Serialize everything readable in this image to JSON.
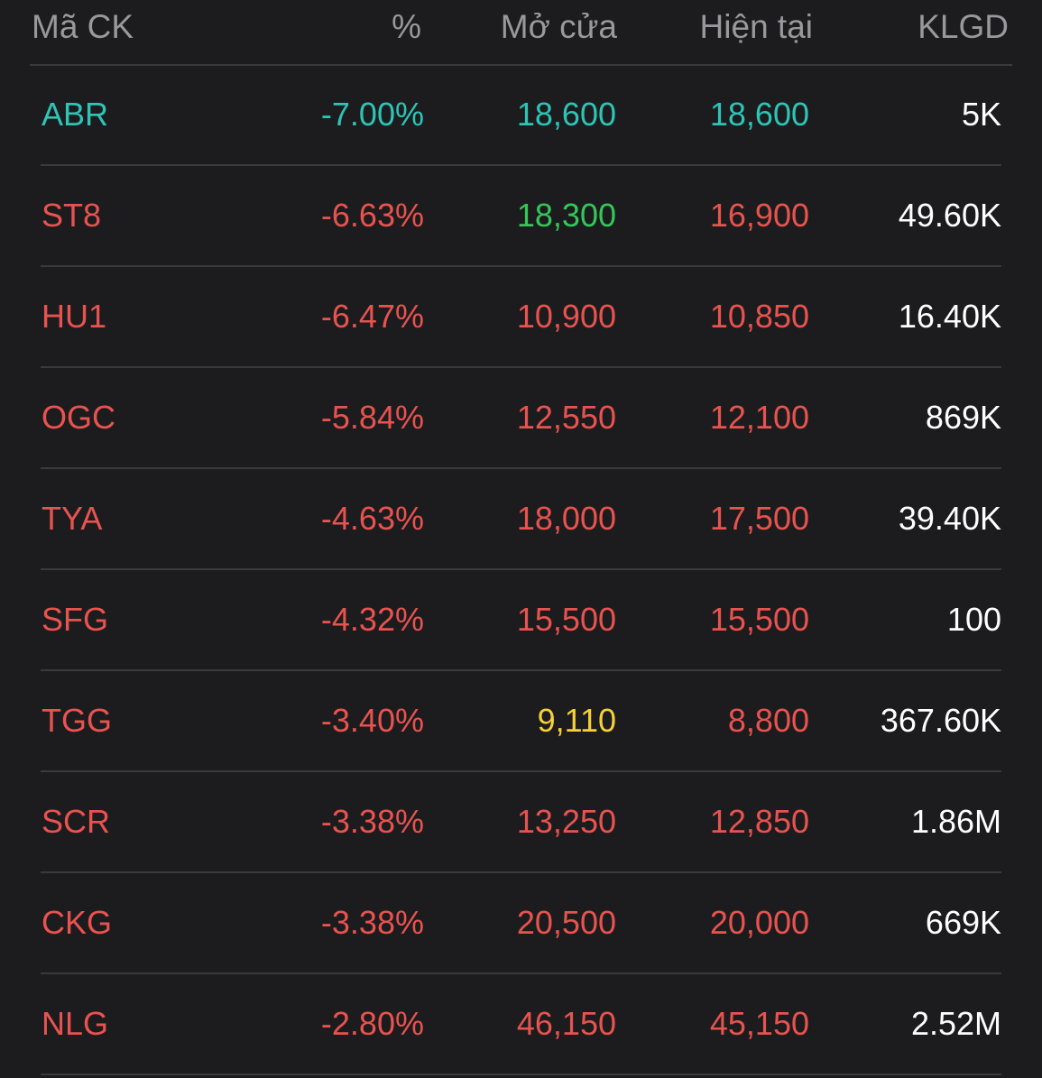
{
  "colors": {
    "background": "#1c1c1e",
    "header_text": "#98989d",
    "divider": "#3a3a3c",
    "down": "#e8534f",
    "floor": "#2ec4b6",
    "up": "#34c759",
    "reference": "#f5d038",
    "neutral": "#ffffff"
  },
  "header": {
    "symbol": "Mã CK",
    "percent": "%",
    "open": "Mở cửa",
    "current": "Hiện tại",
    "volume": "KLGD"
  },
  "rows": [
    {
      "symbol": "ABR",
      "percent": "-7.00%",
      "open": "18,600",
      "current": "18,600",
      "volume": "5K",
      "symbol_color": "#2ec4b6",
      "percent_color": "#2ec4b6",
      "open_color": "#2ec4b6",
      "current_color": "#2ec4b6"
    },
    {
      "symbol": "ST8",
      "percent": "-6.63%",
      "open": "18,300",
      "current": "16,900",
      "volume": "49.60K",
      "symbol_color": "#e8534f",
      "percent_color": "#e8534f",
      "open_color": "#34c759",
      "current_color": "#e8534f"
    },
    {
      "symbol": "HU1",
      "percent": "-6.47%",
      "open": "10,900",
      "current": "10,850",
      "volume": "16.40K",
      "symbol_color": "#e8534f",
      "percent_color": "#e8534f",
      "open_color": "#e8534f",
      "current_color": "#e8534f"
    },
    {
      "symbol": "OGC",
      "percent": "-5.84%",
      "open": "12,550",
      "current": "12,100",
      "volume": "869K",
      "symbol_color": "#e8534f",
      "percent_color": "#e8534f",
      "open_color": "#e8534f",
      "current_color": "#e8534f"
    },
    {
      "symbol": "TYA",
      "percent": "-4.63%",
      "open": "18,000",
      "current": "17,500",
      "volume": "39.40K",
      "symbol_color": "#e8534f",
      "percent_color": "#e8534f",
      "open_color": "#e8534f",
      "current_color": "#e8534f"
    },
    {
      "symbol": "SFG",
      "percent": "-4.32%",
      "open": "15,500",
      "current": "15,500",
      "volume": "100",
      "symbol_color": "#e8534f",
      "percent_color": "#e8534f",
      "open_color": "#e8534f",
      "current_color": "#e8534f"
    },
    {
      "symbol": "TGG",
      "percent": "-3.40%",
      "open": "9,110",
      "current": "8,800",
      "volume": "367.60K",
      "symbol_color": "#e8534f",
      "percent_color": "#e8534f",
      "open_color": "#f5d038",
      "current_color": "#e8534f"
    },
    {
      "symbol": "SCR",
      "percent": "-3.38%",
      "open": "13,250",
      "current": "12,850",
      "volume": "1.86M",
      "symbol_color": "#e8534f",
      "percent_color": "#e8534f",
      "open_color": "#e8534f",
      "current_color": "#e8534f"
    },
    {
      "symbol": "CKG",
      "percent": "-3.38%",
      "open": "20,500",
      "current": "20,000",
      "volume": "669K",
      "symbol_color": "#e8534f",
      "percent_color": "#e8534f",
      "open_color": "#e8534f",
      "current_color": "#e8534f"
    },
    {
      "symbol": "NLG",
      "percent": "-2.80%",
      "open": "46,150",
      "current": "45,150",
      "volume": "2.52M",
      "symbol_color": "#e8534f",
      "percent_color": "#e8534f",
      "open_color": "#e8534f",
      "current_color": "#e8534f"
    }
  ]
}
